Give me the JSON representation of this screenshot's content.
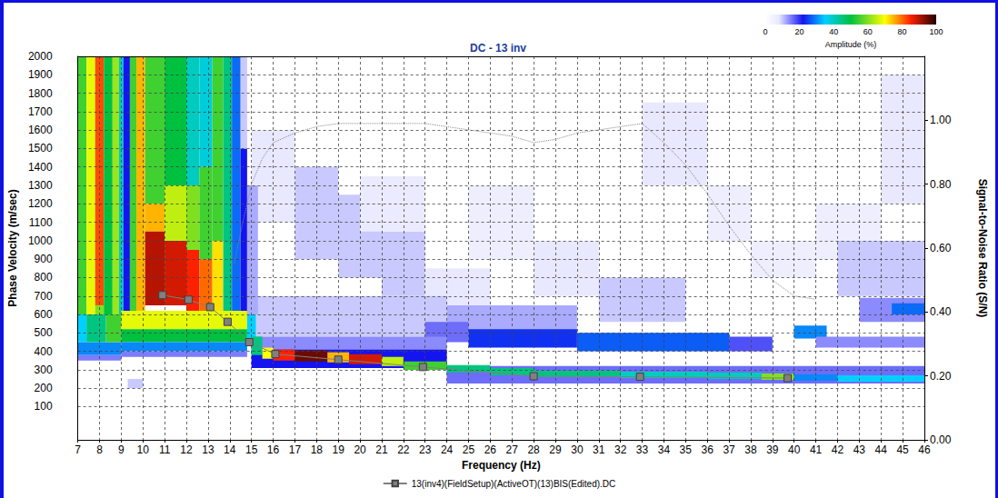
{
  "chart_data": {
    "type": "heatmap",
    "title": "DC - 13 inv",
    "x_label": "Frequency (Hz)",
    "y_label": "Phase Velocity (m/sec)",
    "y2_label": "Signal-to-Noise Ratio (S/N)",
    "xlim": [
      7,
      46
    ],
    "xticks": [
      7,
      8,
      9,
      10,
      11,
      12,
      13,
      14,
      15,
      16,
      17,
      18,
      19,
      20,
      21,
      22,
      23,
      24,
      25,
      26,
      27,
      28,
      29,
      30,
      31,
      32,
      33,
      34,
      35,
      36,
      37,
      38,
      39,
      40,
      41,
      42,
      43,
      44,
      45,
      46
    ],
    "ylim": [
      -80,
      2000
    ],
    "yticks": [
      100,
      200,
      300,
      400,
      500,
      600,
      700,
      800,
      900,
      1000,
      1100,
      1200,
      1300,
      1400,
      1500,
      1600,
      1700,
      1800,
      1900,
      2000
    ],
    "y2lim": [
      0,
      1.2
    ],
    "y2ticks": [
      {
        "value": 0,
        "label": "0.00"
      },
      {
        "value": 0.2,
        "label": "0.20"
      },
      {
        "value": 0.4,
        "label": "0.40"
      },
      {
        "value": 0.6,
        "label": "0.60"
      },
      {
        "value": 0.8,
        "label": "0.80"
      },
      {
        "value": 1,
        "label": "1.00"
      }
    ],
    "grid": true,
    "legend": "bottom",
    "colorbar": {
      "label": "Amplitude (%)",
      "range": [
        0,
        100
      ],
      "ticks": [
        0,
        20,
        40,
        60,
        80,
        100
      ]
    },
    "heatmap_cells": [
      [
        15,
        17,
        1100,
        1600,
        8
      ],
      [
        17,
        19,
        900,
        1400,
        10
      ],
      [
        19,
        21,
        800,
        1250,
        10
      ],
      [
        21,
        23,
        700,
        1050,
        10
      ],
      [
        23,
        26,
        600,
        850,
        8
      ],
      [
        20,
        23,
        1050,
        1350,
        7
      ],
      [
        25,
        28,
        900,
        1300,
        6
      ],
      [
        28,
        31,
        700,
        1000,
        8
      ],
      [
        31,
        35,
        560,
        800,
        10
      ],
      [
        33,
        36,
        1300,
        1750,
        8
      ],
      [
        36,
        38,
        1000,
        1300,
        6
      ],
      [
        38,
        41,
        800,
        1000,
        6
      ],
      [
        41,
        44,
        900,
        1200,
        6
      ],
      [
        44,
        46,
        1200,
        1900,
        8
      ],
      [
        42,
        46,
        700,
        1000,
        10
      ],
      [
        15,
        24,
        480,
        700,
        10
      ],
      [
        24,
        30,
        500,
        650,
        12
      ],
      [
        23,
        25,
        450,
        560,
        16
      ],
      [
        25,
        30,
        420,
        520,
        24
      ],
      [
        30,
        37,
        400,
        500,
        27
      ],
      [
        37,
        39,
        400,
        480,
        18
      ],
      [
        40,
        41.5,
        470,
        540,
        30
      ],
      [
        41,
        46,
        420,
        480,
        14
      ],
      [
        43,
        46,
        560,
        690,
        14
      ],
      [
        44.5,
        46,
        600,
        660,
        28
      ],
      [
        15,
        24,
        410,
        480,
        14
      ],
      [
        15,
        24,
        310,
        410,
        22
      ],
      [
        24,
        46,
        225,
        320,
        16
      ],
      [
        7,
        7.4,
        600,
        2000,
        55
      ],
      [
        7,
        7.4,
        450,
        600,
        35
      ],
      [
        7.4,
        7.8,
        600,
        2000,
        68
      ],
      [
        7.8,
        8.2,
        650,
        2000,
        82
      ],
      [
        7.8,
        8.2,
        600,
        650,
        60
      ],
      [
        8.2,
        8.6,
        600,
        2000,
        50
      ],
      [
        8.6,
        8.9,
        600,
        2000,
        62
      ],
      [
        8.9,
        9.1,
        550,
        2000,
        40
      ],
      [
        9.1,
        9.4,
        550,
        2000,
        22
      ],
      [
        9.4,
        9.7,
        600,
        2000,
        55
      ],
      [
        9.7,
        10.1,
        600,
        2000,
        75
      ],
      [
        10.1,
        11,
        1200,
        2000,
        55
      ],
      [
        10.1,
        11,
        1050,
        1200,
        75
      ],
      [
        10.1,
        11,
        650,
        1050,
        90
      ],
      [
        11,
        12,
        1300,
        2000,
        50
      ],
      [
        11,
        12,
        1000,
        1300,
        65
      ],
      [
        11,
        12,
        650,
        1000,
        88
      ],
      [
        12,
        12.6,
        1300,
        2000,
        40
      ],
      [
        12,
        12.6,
        950,
        1300,
        60
      ],
      [
        12,
        12.6,
        620,
        950,
        85
      ],
      [
        12.6,
        13.2,
        1400,
        2000,
        38
      ],
      [
        12.6,
        13.2,
        900,
        1400,
        55
      ],
      [
        12.6,
        13.2,
        620,
        900,
        80
      ],
      [
        13.2,
        13.7,
        1000,
        2000,
        55
      ],
      [
        13.2,
        13.7,
        620,
        1000,
        72
      ],
      [
        13.7,
        14.1,
        620,
        2000,
        45
      ],
      [
        14.1,
        14.5,
        600,
        2000,
        28
      ],
      [
        14.5,
        14.8,
        600,
        1500,
        22
      ],
      [
        14.5,
        14.8,
        1500,
        2000,
        10
      ],
      [
        14.8,
        15.3,
        600,
        1300,
        12
      ],
      [
        7,
        9,
        380,
        450,
        30
      ],
      [
        7.4,
        8.3,
        450,
        600,
        45
      ],
      [
        8.3,
        9,
        450,
        600,
        55
      ],
      [
        9,
        14.8,
        520,
        620,
        68
      ],
      [
        9,
        14.8,
        450,
        520,
        50
      ],
      [
        9,
        14.8,
        400,
        450,
        30
      ],
      [
        9,
        14.8,
        370,
        400,
        15
      ],
      [
        7,
        9,
        350,
        380,
        15
      ],
      [
        9.3,
        10,
        200,
        250,
        10
      ],
      [
        14.8,
        15.2,
        450,
        600,
        35
      ],
      [
        15,
        15.5,
        380,
        480,
        45
      ],
      [
        15.5,
        16,
        360,
        420,
        70
      ],
      [
        16,
        17,
        350,
        410,
        85
      ],
      [
        17,
        18.5,
        345,
        405,
        95
      ],
      [
        18.5,
        19.5,
        340,
        395,
        75
      ],
      [
        19.5,
        21,
        330,
        385,
        88
      ],
      [
        21,
        22,
        320,
        370,
        65
      ],
      [
        22,
        24,
        300,
        345,
        55
      ],
      [
        24,
        26,
        285,
        325,
        45
      ],
      [
        26,
        28,
        270,
        310,
        45
      ],
      [
        28,
        32,
        260,
        295,
        45
      ],
      [
        32,
        36,
        255,
        290,
        40
      ],
      [
        36,
        38.5,
        250,
        285,
        40
      ],
      [
        38.5,
        40,
        245,
        280,
        60
      ],
      [
        40,
        42,
        240,
        275,
        30
      ],
      [
        42,
        46,
        235,
        270,
        35
      ]
    ],
    "series": [
      {
        "name": "13(inv4)(FieldSetup)(ActiveOT)(13)BIS(Edited).DC",
        "type": "line",
        "marker": "square",
        "color": "#808080",
        "x": [
          10.9,
          12.1,
          13.1,
          13.9,
          14.9,
          16.1,
          19.0,
          22.9,
          28.0,
          32.9,
          39.7
        ],
        "values": [
          705,
          680,
          640,
          560,
          450,
          385,
          355,
          315,
          265,
          262,
          255
        ]
      },
      {
        "type": "line",
        "line_style": "dotted",
        "axis": "y2",
        "color": "#888888",
        "x": [
          14.2,
          14.6,
          15.0,
          15.5,
          16.0,
          17.0,
          18.0,
          19.0,
          20.0,
          22.0,
          23.0,
          24.0,
          25.0,
          26.0,
          27.0,
          28.0,
          29.0,
          30.0,
          31.0,
          32.0,
          33.0,
          34.0,
          35.0,
          36.0,
          37.0,
          38.0,
          39.0,
          40.0,
          41.0
        ],
        "values": [
          0.55,
          0.68,
          0.8,
          0.88,
          0.93,
          0.96,
          0.98,
          0.99,
          0.99,
          0.99,
          0.99,
          0.98,
          0.97,
          0.96,
          0.95,
          0.93,
          0.94,
          0.96,
          0.97,
          0.98,
          0.99,
          0.93,
          0.86,
          0.77,
          0.67,
          0.58,
          0.5,
          0.45,
          0.44
        ]
      }
    ]
  }
}
